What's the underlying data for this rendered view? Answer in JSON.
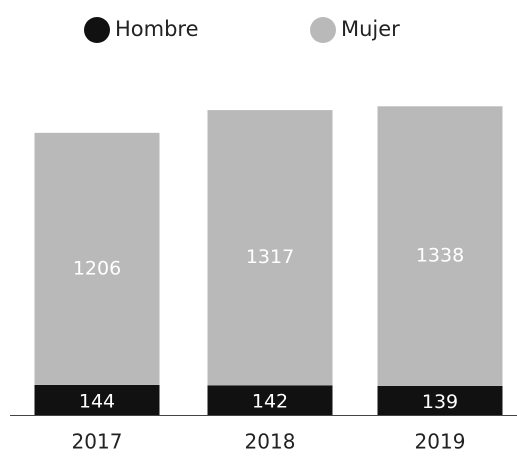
{
  "chart_data": {
    "type": "stacked_bar",
    "categories": [
      "2017",
      "2018",
      "2019"
    ],
    "series": [
      {
        "name": "Hombre",
        "color": "#111111",
        "values": [
          144,
          142,
          139
        ]
      },
      {
        "name": "Mujer",
        "color": "#b9b9b9",
        "values": [
          1206,
          1317,
          1338
        ]
      }
    ],
    "legend": "top"
  }
}
